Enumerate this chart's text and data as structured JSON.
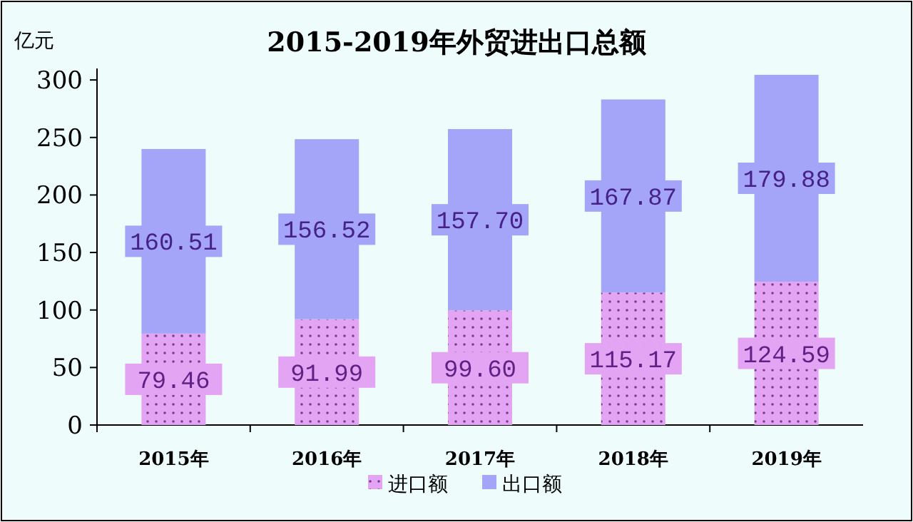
{
  "chart_data": {
    "type": "bar",
    "title": "2015-2019年外贸进出口总额",
    "ylabel": "亿元",
    "categories": [
      "2015年",
      "2016年",
      "2017年",
      "2018年",
      "2019年"
    ],
    "stacked": true,
    "ylim": [
      0,
      310
    ],
    "yticks": [
      0,
      50,
      100,
      150,
      200,
      250,
      300
    ],
    "grid": false,
    "legend": "bottom",
    "series": [
      {
        "name": "进口额",
        "color": "#e4a4f4",
        "values": [
          79.46,
          91.99,
          99.6,
          115.17,
          124.59
        ],
        "value_labels": [
          "79.46",
          "91.99",
          "99.60",
          "115.17",
          "124.59"
        ]
      },
      {
        "name": "出口额",
        "color": "#a4a4f8",
        "values": [
          160.51,
          156.52,
          157.7,
          167.87,
          179.88
        ],
        "value_labels": [
          "160.51",
          "156.52",
          "157.70",
          "167.87",
          "179.88"
        ]
      }
    ]
  }
}
